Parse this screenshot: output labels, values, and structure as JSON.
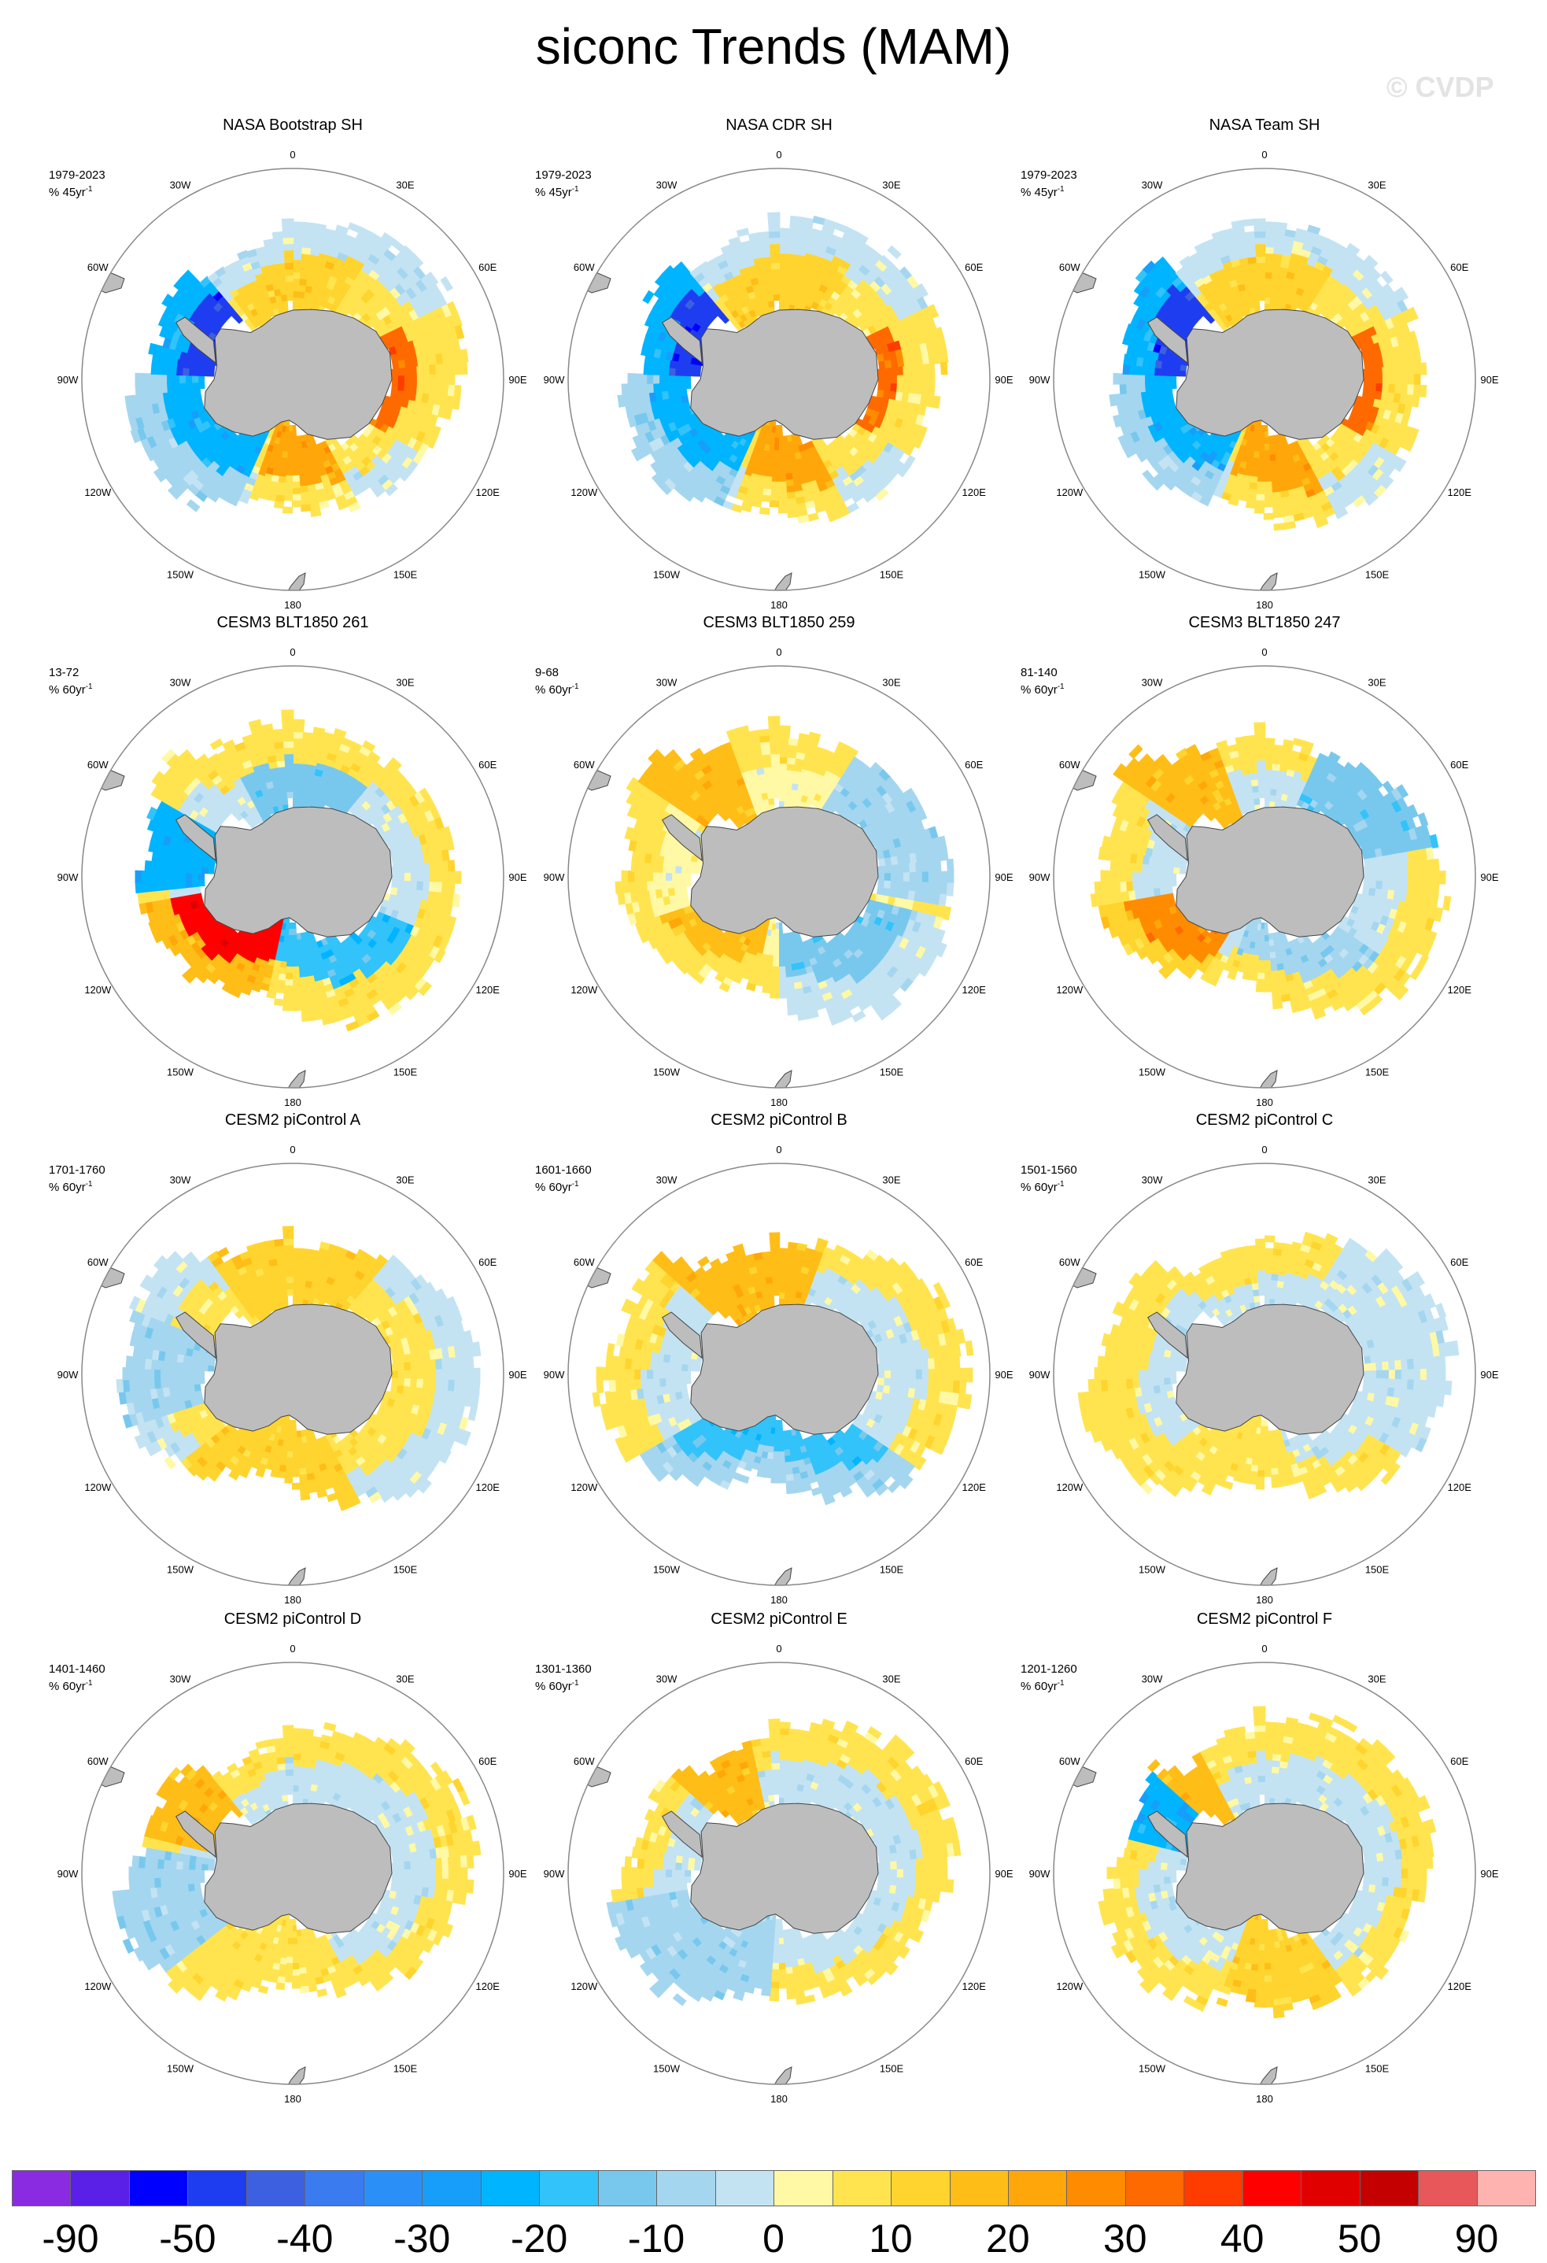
{
  "title": "siconc Trends (MAM)",
  "watermark": "© CVDP",
  "longitude_labels": [
    "0",
    "30E",
    "60E",
    "90E",
    "120E",
    "150E",
    "180",
    "150W",
    "120W",
    "90W",
    "60W",
    "30W"
  ],
  "panels": [
    {
      "title": "NASA Bootstrap SH",
      "years": "1979-2023",
      "units": "% 45yr",
      "pattern": "obs",
      "seed": 1
    },
    {
      "title": "NASA CDR SH",
      "years": "1979-2023",
      "units": "% 45yr",
      "pattern": "obs",
      "seed": 2
    },
    {
      "title": "NASA Team SH",
      "years": "1979-2023",
      "units": "% 45yr",
      "pattern": "obs",
      "seed": 3
    },
    {
      "title": "CESM3 BLT1850 261",
      "years": "13-72",
      "units": "% 60yr",
      "pattern": "m261",
      "seed": 4
    },
    {
      "title": "CESM3 BLT1850 259",
      "years": "9-68",
      "units": "% 60yr",
      "pattern": "m259",
      "seed": 5
    },
    {
      "title": "CESM3 BLT1850 247",
      "years": "81-140",
      "units": "% 60yr",
      "pattern": "m247",
      "seed": 6
    },
    {
      "title": "CESM2 piControl A",
      "years": "1701-1760",
      "units": "% 60yr",
      "pattern": "pA",
      "seed": 7
    },
    {
      "title": "CESM2 piControl B",
      "years": "1601-1660",
      "units": "% 60yr",
      "pattern": "pB",
      "seed": 8
    },
    {
      "title": "CESM2 piControl C",
      "years": "1501-1560",
      "units": "% 60yr",
      "pattern": "pC",
      "seed": 9
    },
    {
      "title": "CESM2 piControl D",
      "years": "1401-1460",
      "units": "% 60yr",
      "pattern": "pD",
      "seed": 10
    },
    {
      "title": "CESM2 piControl E",
      "years": "1301-1360",
      "units": "% 60yr",
      "pattern": "pE",
      "seed": 11
    },
    {
      "title": "CESM2 piControl F",
      "years": "1201-1260",
      "units": "% 60yr",
      "pattern": "pF",
      "seed": 12
    }
  ],
  "colorbar": {
    "colors": [
      "#8a2be2",
      "#5b20e8",
      "#0000ff",
      "#1f3df0",
      "#3c60e0",
      "#3b7bf0",
      "#2b8ff8",
      "#179efa",
      "#00b4ff",
      "#32c3fa",
      "#78c8ee",
      "#a5d6ef",
      "#c3e3f3",
      "#fff9a5",
      "#ffe44f",
      "#ffd42e",
      "#ffbd17",
      "#ffa70a",
      "#ff8c00",
      "#ff6a00",
      "#ff3c00",
      "#ff0000",
      "#e00000",
      "#c40000",
      "#e8585a",
      "#ffb3b0"
    ],
    "labels": [
      "-90",
      "-50",
      "-40",
      "-30",
      "-20",
      "-10",
      "0",
      "10",
      "20",
      "30",
      "40",
      "50",
      "90"
    ],
    "label_box_indices": [
      1,
      3,
      5,
      7,
      9,
      11,
      13,
      15,
      17,
      19,
      21,
      23,
      25
    ]
  }
}
